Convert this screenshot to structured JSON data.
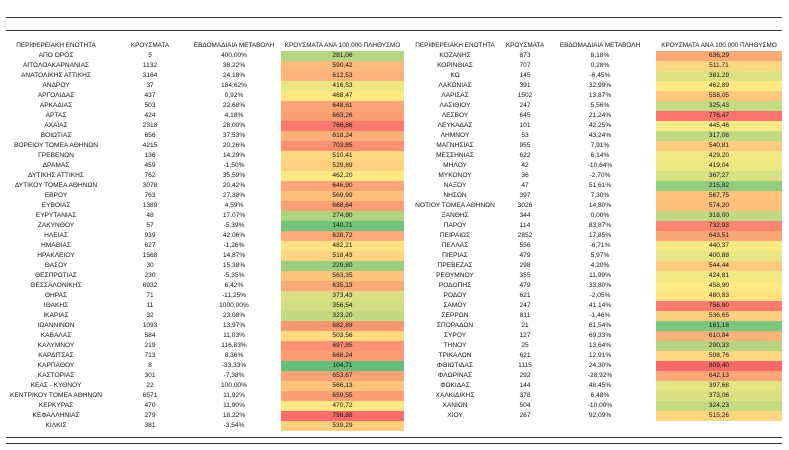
{
  "left": {
    "headers": [
      "ΠΕΡΙΦΕΡΕΙΑΚΗ ΕΝΟΤΗΤΑ",
      "ΚΡΟΥΣΜΑΤΑ",
      "ΕΒΔΟΜΑΔΙΑΙΑ ΜΕΤΑΒΟΛΗ",
      "ΚΡΟΥΣΜΑΤΑ ΑΝΑ 100.000 ΠΛΗΘΥΣΜΟ"
    ],
    "rows": [
      [
        "ΑΠΟ ΟΡΟΣ",
        "5",
        "400,00%",
        "281,06"
      ],
      [
        "ΑΙΤΩΛΟΑΚΑΡΝΑΝΙΑΣ",
        "1132",
        "38,22%",
        "590,42"
      ],
      [
        "ΑΝΑΤΟΛΙΚΗΣ ΑΤΤΙΚΗΣ",
        "3164",
        "24,18%",
        "612,53"
      ],
      [
        "ΑΝΔΡΟΥ",
        "37",
        "184,62%",
        "416,53"
      ],
      [
        "ΑΡΓΟΛΙΔΑΣ",
        "437",
        "0,92%",
        "468,47"
      ],
      [
        "ΑΡΚΑΔΙΑΣ",
        "503",
        "22,68%",
        "648,61"
      ],
      [
        "ΑΡΤΑΣ",
        "424",
        "4,18%",
        "663,26"
      ],
      [
        "ΑΧΑΪΑΣ",
        "2318",
        "28,00%",
        "766,86"
      ],
      [
        "ΒΟΙΩΤΙΑΣ",
        "656",
        "37,53%",
        "618,24"
      ],
      [
        "ΒΟΡΕΙΟΥ ΤΟΜΕΑ ΑΘΗΝΩΝ",
        "4215",
        "20,26%",
        "703,85"
      ],
      [
        "ΓΡΕΒΕΝΩΝ",
        "136",
        "14,29%",
        "510,41"
      ],
      [
        "ΔΡΑΜΑΣ",
        "459",
        "-1,50%",
        "529,89"
      ],
      [
        "ΔΥΤΙΚΗΣ ΑΤΤΙΚΗΣ",
        "762",
        "35,59%",
        "462,20"
      ],
      [
        "ΔΥΤΙΚΟΥ ΤΟΜΕΑ ΑΘΗΝΩΝ",
        "3078",
        "20,42%",
        "646,90"
      ],
      [
        "ΕΒΡΟΥ",
        "763",
        "27,38%",
        "569,99"
      ],
      [
        "ΕΥΒΟΙΑΣ",
        "1389",
        "4,59%",
        "668,64"
      ],
      [
        "ΕΥΡΥΤΑΝΙΑΣ",
        "48",
        "17,07%",
        "274,90"
      ],
      [
        "ΖΑΚΥΝΘΟΥ",
        "57",
        "-5,39%",
        "140,71"
      ],
      [
        "ΗΛΕΙΑΣ",
        "939",
        "42,06%",
        "628,72"
      ],
      [
        "ΗΜΑΘΙΑΣ",
        "627",
        "-1,26%",
        "482,21"
      ],
      [
        "ΗΡΑΚΛΕΙΟΥ",
        "1568",
        "14,87%",
        "518,43"
      ],
      [
        "ΘΑΣΟΥ",
        "30",
        "15,38%",
        "229,80"
      ],
      [
        "ΘΕΣΠΡΩΤΙΑΣ",
        "230",
        "-5,35%",
        "563,35"
      ],
      [
        "ΘΕΣΣΑΛΟΝΙΚΗΣ",
        "6932",
        "6,42%",
        "635,13"
      ],
      [
        "ΘΗΡΑΣ",
        "71",
        "-11,25%",
        "373,43"
      ],
      [
        "ΙΘΑΚΗΣ",
        "11",
        "1000,00%",
        "356,54"
      ],
      [
        "ΙΚΑΡΙΑΣ",
        "32",
        "23,08%",
        "323,20"
      ],
      [
        "ΙΩΑΝΝΙΝΩΝ",
        "1093",
        "13,97%",
        "682,89"
      ],
      [
        "ΚΑΒΑΛΑΣ",
        "584",
        "11,03%",
        "503,56"
      ],
      [
        "ΚΑΛΥΜΝΟΥ",
        "219",
        "116,83%",
        "697,85"
      ],
      [
        "ΚΑΡΔΙΤΣΑΣ",
        "713",
        "8,36%",
        "668,24"
      ],
      [
        "ΚΑΡΠΑΘΟΥ",
        "8",
        "-33,33%",
        "104,71"
      ],
      [
        "ΚΑΣΤΟΡΙΑΣ",
        "301",
        "-7,38%",
        "653,67"
      ],
      [
        "ΚΕΑΣ - ΚΥΘΝΟΥ",
        "22",
        "100,00%",
        "566,13"
      ],
      [
        "ΚΕΝΤΡΙΚΟΥ ΤΟΜΕΑ ΑΘΗΝΩΝ",
        "6571",
        "11,92%",
        "659,55"
      ],
      [
        "ΚΕΡΚΥΡΑΣ",
        "470",
        "11,90%",
        "470,72"
      ],
      [
        "ΚΕΦΑΛΛΗΝΙΑΣ",
        "279",
        "18,22%",
        "798,88"
      ],
      [
        "ΚΙΛΚΙΣ",
        "381",
        "-3,54%",
        "539,29"
      ]
    ]
  },
  "right": {
    "headers": [
      "ΠΕΡΙΦΕΡΕΙΑΚΗ ΕΝΟΤΗΤΑ",
      "ΚΡΟΥΣΜΑΤΑ",
      "ΕΒΔΟΜΑΔΙΑΙΑ ΜΕΤΑΒΟΛΗ",
      "ΚΡΟΥΣΜΑΤΑ ΑΝΑ 100.000 ΠΛΗΘΥΣΜΟ"
    ],
    "rows": [
      [
        "ΚΟΖΑΝΗΣ",
        "873",
        "8,18%",
        "636,29"
      ],
      [
        "ΚΟΡΙΝΘΙΑΣ",
        "707",
        "0,28%",
        "511,71"
      ],
      [
        "ΚΩ",
        "145",
        "-6,45%",
        "381,29"
      ],
      [
        "ΛΑΚΩΝΙΑΣ",
        "391",
        "32,99%",
        "462,89"
      ],
      [
        "ΛΑΡΙΣΑΣ",
        "1502",
        "13,87%",
        "558,05"
      ],
      [
        "ΛΑΣΙΘΙΟΥ",
        "247",
        "5,56%",
        "325,43"
      ],
      [
        "ΛΕΣΒΟΥ",
        "645",
        "21,24%",
        "776,47"
      ],
      [
        "ΛΕΥΚΑΔΑΣ",
        "101",
        "42,25%",
        "445,46"
      ],
      [
        "ΛΗΜΝΟΥ",
        "53",
        "43,24%",
        "317,08"
      ],
      [
        "ΜΑΓΝΗΣΙΑΣ",
        "955",
        "7,91%",
        "540,81"
      ],
      [
        "ΜΕΣΣΗΝΙΑΣ",
        "622",
        "6,14%",
        "429,20"
      ],
      [
        "ΜΗΛΟΥ",
        "42",
        "-10,64%",
        "419,04"
      ],
      [
        "ΜΥΚΟΝΟΥ",
        "36",
        "-2,70%",
        "367,27"
      ],
      [
        "ΝΑΞΟΥ",
        "47",
        "51,61%",
        "215,82"
      ],
      [
        "ΝΗΣΩΝ",
        "397",
        "7,30%",
        "567,75"
      ],
      [
        "ΝΟΤΙΟΥ ΤΟΜΕΑ ΑΘΗΝΩΝ",
        "3026",
        "14,80%",
        "574,20"
      ],
      [
        "ΞΑΝΘΗΣ",
        "344",
        "0,00%",
        "318,00"
      ],
      [
        "ΠΑΡΟΥ",
        "114",
        "83,87%",
        "732,93"
      ],
      [
        "ΠΕΙΡΑΙΩΣ",
        "2852",
        "17,85%",
        "643,51"
      ],
      [
        "ΠΕΛΛΑΣ",
        "556",
        "-6,71%",
        "440,37"
      ],
      [
        "ΠΙΕΡΙΑΣ",
        "479",
        "5,97%",
        "400,88"
      ],
      [
        "ΠΡΕΒΕΖΑΣ",
        "298",
        "4,20%",
        "544,44"
      ],
      [
        "ΡΕΘΥΜΝΟΥ",
        "355",
        "11,99%",
        "424,81"
      ],
      [
        "ΡΟΔΟΠΗΣ",
        "479",
        "33,80%",
        "458,90"
      ],
      [
        "ΡΟΔΟΥ",
        "621",
        "-2,05%",
        "480,83"
      ],
      [
        "ΣΑΜΟΥ",
        "247",
        "41,14%",
        "756,90"
      ],
      [
        "ΣΕΡΡΩΝ",
        "811",
        "-1,46%",
        "536,65"
      ],
      [
        "ΣΠΟΡΑΔΩΝ",
        "21",
        "61,54%",
        "161,18"
      ],
      [
        "ΣΥΡΟΥ",
        "127",
        "69,33%",
        "610,84"
      ],
      [
        "ΤΗΝΟΥ",
        "25",
        "13,64%",
        "290,33"
      ],
      [
        "ΤΡΙΚΑΛΩΝ",
        "621",
        "12,91%",
        "508,76"
      ],
      [
        "ΦΘΙΩΤΙΔΑΣ",
        "1115",
        "24,30%",
        "809,40"
      ],
      [
        "ΦΛΩΡΙΝΑΣ",
        "292",
        "-28,92%",
        "642,13"
      ],
      [
        "ΦΩΚΙΔΑΣ",
        "144",
        "48,45%",
        "397,68"
      ],
      [
        "ΧΑΛΚΙΔΙΚΗΣ",
        "378",
        "6,48%",
        "373,06"
      ],
      [
        "ΧΑΝΙΩΝ",
        "504",
        "-10,00%",
        "324,23"
      ],
      [
        "ΧΙΟΥ",
        "267",
        "92,09%",
        "515,26"
      ]
    ]
  }
}
